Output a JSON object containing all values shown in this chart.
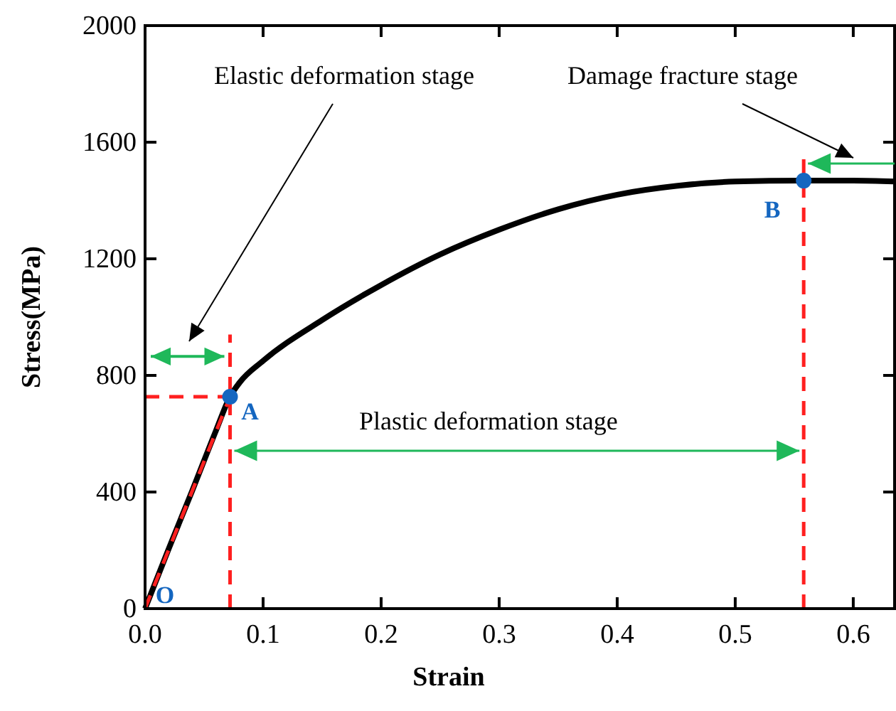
{
  "chart_data": {
    "type": "line",
    "xlabel": "Strain",
    "ylabel": "Stress(MPa)",
    "xlim": [
      0,
      0.635
    ],
    "ylim": [
      0,
      2000
    ],
    "xticks": [
      {
        "value": 0,
        "label": "0.0"
      },
      0.1,
      0.2,
      0.3,
      0.4,
      0.5,
      0.6
    ],
    "yticks": [
      0,
      400,
      800,
      1200,
      1600,
      2000
    ],
    "grid": false,
    "series": [
      {
        "color": "#000000",
        "line_style": "solid",
        "x": [
          0,
          0.02,
          0.04,
          0.06,
          0.072,
          0.08,
          0.1,
          0.15,
          0.2,
          0.25,
          0.3,
          0.35,
          0.4,
          0.45,
          0.5,
          0.558,
          0.6,
          0.635
        ],
        "values": [
          0,
          205,
          405,
          610,
          727,
          775,
          850,
          990,
          1110,
          1215,
          1300,
          1370,
          1420,
          1450,
          1465,
          1468,
          1468,
          1465
        ]
      },
      {
        "color": "#ff2020",
        "line_style": "dashed",
        "x": [
          0,
          0.072
        ],
        "values": [
          0,
          727
        ]
      },
      {
        "color": "#ff2020",
        "line_style": "dashed",
        "x": [
          0,
          0.072
        ],
        "values": [
          727,
          727
        ]
      },
      {
        "color": "#ff2020",
        "line_style": "dashed",
        "x": [
          0.072,
          0.072
        ],
        "values": [
          0,
          940
        ]
      },
      {
        "color": "#ff2020",
        "line_style": "dashed",
        "x": [
          0.558,
          0.558
        ],
        "values": [
          0,
          1550
        ]
      },
      {
        "type": "scatter",
        "color": "#1466c0",
        "marker": "circle",
        "x": [
          0.072,
          0.558
        ],
        "values": [
          727,
          1468
        ]
      }
    ],
    "annotations": [
      {
        "text": "O",
        "x": 0,
        "y": 0
      },
      {
        "text": "A",
        "x": 0.072,
        "y": 727
      },
      {
        "text": "B",
        "x": 0.558,
        "y": 1468
      },
      "Elastic deformation stage",
      "Plastic deformation stage",
      "Damage fracture stage"
    ]
  }
}
